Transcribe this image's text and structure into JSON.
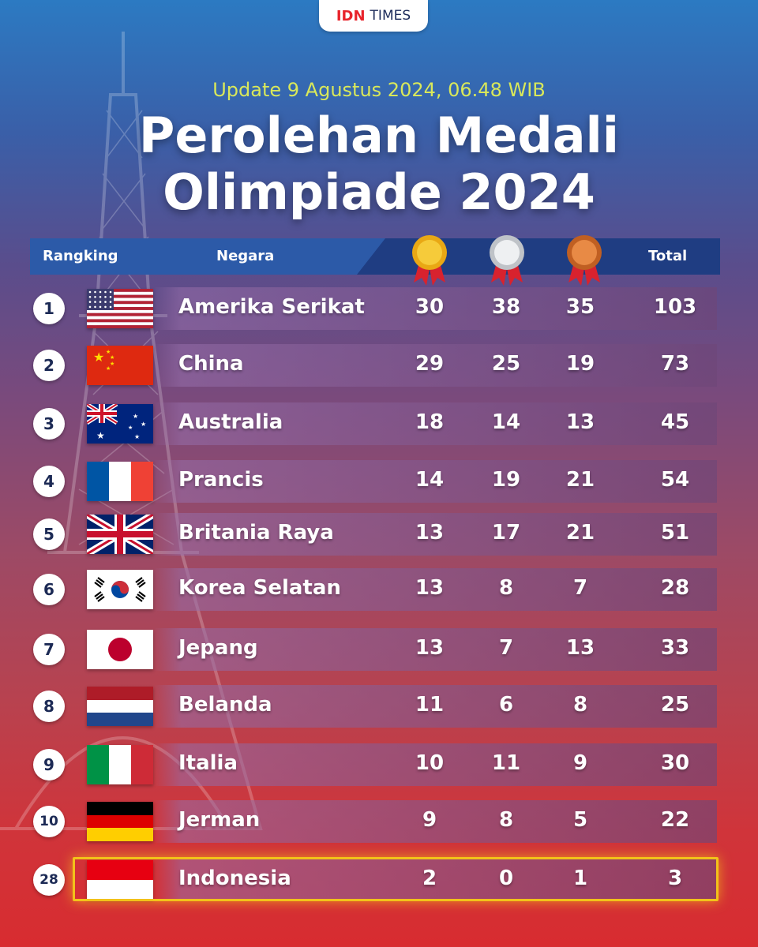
{
  "brand": {
    "part1": "IDN",
    "part2": "TIMES"
  },
  "update_text": "Update 9 Agustus 2024, 06.48 WIB",
  "title_line1": "Perolehan Medali",
  "title_line2": "Olimpiade 2024",
  "header": {
    "rank": "Rangking",
    "country": "Negara",
    "total": "Total"
  },
  "medal_icons": [
    "gold-medal-icon",
    "silver-medal-icon",
    "bronze-medal-icon"
  ],
  "colors": {
    "gold": "#f2c21a",
    "silver": "#e6e6e6",
    "bronze": "#e07a36",
    "header_bg": "#1f3d82",
    "update_text": "#d9e85a"
  },
  "rows": [
    {
      "rank": "1",
      "country": "Amerika Serikat",
      "gold": "30",
      "silver": "38",
      "bronze": "35",
      "total": "103",
      "flag": "usa-flag-icon"
    },
    {
      "rank": "2",
      "country": "China",
      "gold": "29",
      "silver": "25",
      "bronze": "19",
      "total": "73",
      "flag": "china-flag-icon"
    },
    {
      "rank": "3",
      "country": "Australia",
      "gold": "18",
      "silver": "14",
      "bronze": "13",
      "total": "45",
      "flag": "australia-flag-icon"
    },
    {
      "rank": "4",
      "country": "Prancis",
      "gold": "14",
      "silver": "19",
      "bronze": "21",
      "total": "54",
      "flag": "france-flag-icon"
    },
    {
      "rank": "5",
      "country": "Britania Raya",
      "gold": "13",
      "silver": "17",
      "bronze": "21",
      "total": "51",
      "flag": "uk-flag-icon"
    },
    {
      "rank": "6",
      "country": "Korea Selatan",
      "gold": "13",
      "silver": "8",
      "bronze": "7",
      "total": "28",
      "flag": "south-korea-flag-icon"
    },
    {
      "rank": "7",
      "country": "Jepang",
      "gold": "13",
      "silver": "7",
      "bronze": "13",
      "total": "33",
      "flag": "japan-flag-icon"
    },
    {
      "rank": "8",
      "country": "Belanda",
      "gold": "11",
      "silver": "6",
      "bronze": "8",
      "total": "25",
      "flag": "netherlands-flag-icon"
    },
    {
      "rank": "9",
      "country": "Italia",
      "gold": "10",
      "silver": "11",
      "bronze": "9",
      "total": "30",
      "flag": "italy-flag-icon"
    },
    {
      "rank": "10",
      "country": "Jerman",
      "gold": "9",
      "silver": "8",
      "bronze": "5",
      "total": "22",
      "flag": "germany-flag-icon"
    },
    {
      "rank": "28",
      "country": "Indonesia",
      "gold": "2",
      "silver": "0",
      "bronze": "1",
      "total": "3",
      "flag": "indonesia-flag-icon"
    }
  ]
}
